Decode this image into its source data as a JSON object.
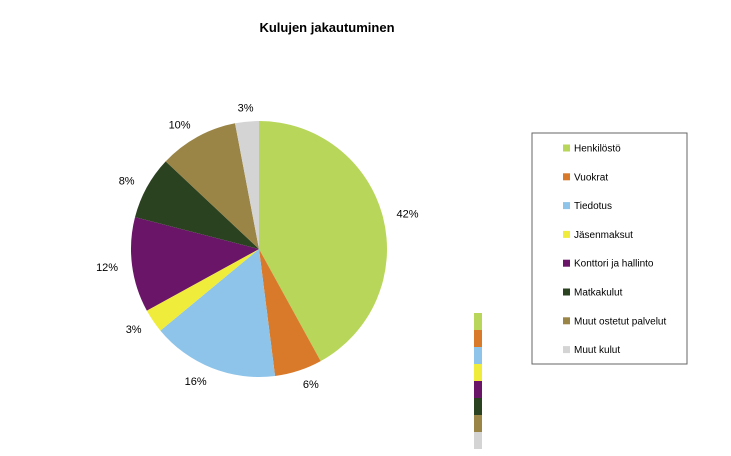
{
  "chart_data": {
    "type": "pie",
    "title": "Kulujen jakautuminen",
    "legend_position": "right",
    "slices": [
      {
        "label": "Henkilöstö",
        "value": 42,
        "value_label": "42%",
        "color": "#b8d65a"
      },
      {
        "label": "Vuokrat",
        "value": 6,
        "value_label": "6%",
        "color": "#d87a2a"
      },
      {
        "label": "Tiedotus",
        "value": 16,
        "value_label": "16%",
        "color": "#8ec4ea"
      },
      {
        "label": "Jäsenmaksut",
        "value": 3,
        "value_label": "3%",
        "color": "#f0ec3c"
      },
      {
        "label": "Konttori ja hallinto",
        "value": 12,
        "value_label": "12%",
        "color": "#6a1568"
      },
      {
        "label": "Matkakulut",
        "value": 8,
        "value_label": "8%",
        "color": "#2b4221"
      },
      {
        "label": "Muut ostetut palvelut",
        "value": 10,
        "value_label": "10%",
        "color": "#9a8546"
      },
      {
        "label": "Muut kulut",
        "value": 3,
        "value_label": "3%",
        "color": "#d4d4d4"
      }
    ]
  }
}
